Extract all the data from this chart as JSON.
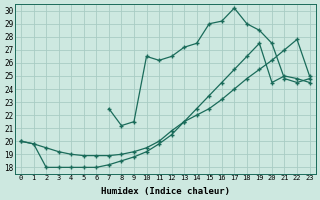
{
  "xlabel": "Humidex (Indice chaleur)",
  "background_color": "#cde8e0",
  "grid_color": "#a8ccc4",
  "line_color": "#1a6b5a",
  "xlim": [
    -0.5,
    23.5
  ],
  "ylim": [
    17.5,
    30.5
  ],
  "yticks": [
    18,
    19,
    20,
    21,
    22,
    23,
    24,
    25,
    26,
    27,
    28,
    29,
    30
  ],
  "xticks": [
    0,
    1,
    2,
    3,
    4,
    5,
    6,
    7,
    8,
    9,
    10,
    11,
    12,
    13,
    14,
    15,
    16,
    17,
    18,
    19,
    20,
    21,
    22,
    23
  ],
  "line1_x": [
    0,
    1,
    2,
    3,
    4,
    5,
    6,
    7,
    8,
    9,
    10,
    11,
    12,
    13,
    14,
    15,
    16,
    17,
    18,
    19,
    20,
    21,
    22,
    23
  ],
  "line1_y": [
    20.0,
    19.8,
    19.5,
    19.2,
    19.0,
    18.9,
    18.9,
    18.9,
    19.0,
    19.2,
    19.5,
    20.0,
    20.8,
    21.5,
    22.5,
    23.5,
    24.5,
    25.5,
    26.5,
    27.5,
    24.5,
    25.0,
    24.8,
    24.5
  ],
  "line2_x": [
    0,
    1,
    2,
    3,
    4,
    5,
    6,
    7,
    8,
    9,
    10,
    11,
    12,
    13,
    14,
    15,
    16,
    17,
    18,
    19,
    20,
    21,
    22,
    23
  ],
  "line2_y": [
    20.0,
    19.8,
    18.0,
    18.0,
    18.0,
    18.0,
    18.0,
    18.2,
    18.5,
    18.8,
    19.2,
    19.8,
    20.5,
    21.5,
    22.0,
    22.5,
    23.2,
    24.0,
    24.8,
    25.5,
    26.2,
    27.0,
    27.8,
    25.0
  ],
  "line3_x": [
    7,
    8,
    9,
    10,
    11,
    12,
    13,
    14,
    15,
    16,
    17,
    18,
    19,
    20,
    21,
    22,
    23
  ],
  "line3_y": [
    22.5,
    21.2,
    21.5,
    26.5,
    26.2,
    26.5,
    27.2,
    27.5,
    29.0,
    29.2,
    30.2,
    29.0,
    28.5,
    27.5,
    24.8,
    24.5,
    24.8
  ]
}
